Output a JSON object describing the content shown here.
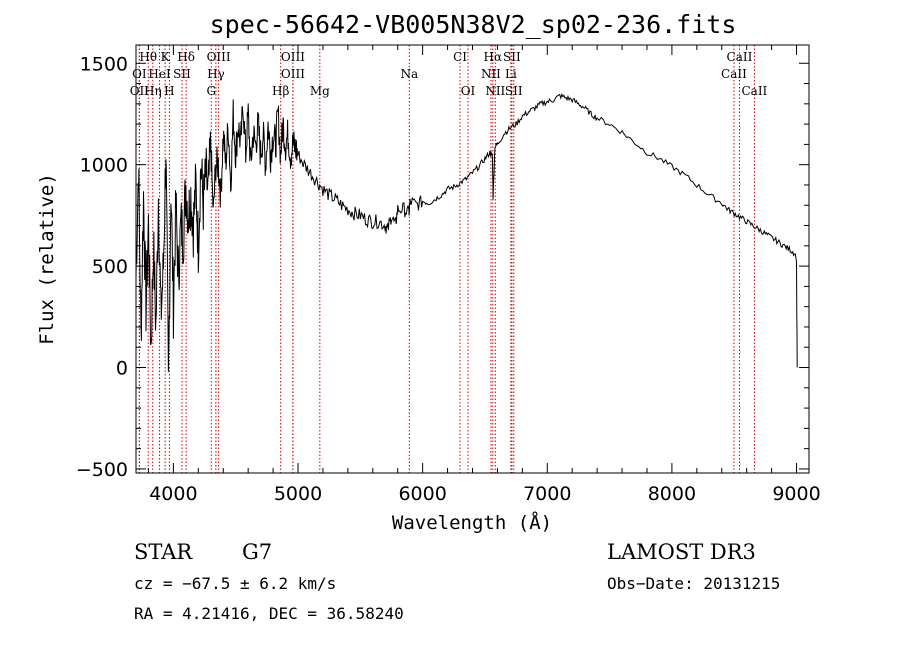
{
  "chart_data": {
    "type": "line",
    "title": "spec-56642-VB005N38V2_sp02-236.fits",
    "xlabel": "Wavelength (Å)",
    "ylabel": "Flux (relative)",
    "xlim": [
      3700,
      9100
    ],
    "ylim": [
      -520,
      1590
    ],
    "x_ticks": [
      4000,
      5000,
      6000,
      7000,
      8000,
      9000
    ],
    "x_tick_labels": [
      "4000",
      "5000",
      "6000",
      "7000",
      "8000",
      "9000"
    ],
    "y_ticks": [
      -500,
      0,
      500,
      1000,
      1500
    ],
    "y_tick_labels": [
      "−500",
      "0",
      "500",
      "1000",
      "1500"
    ],
    "series": [
      {
        "name": "spectrum",
        "color": "#000000",
        "x": [
          3700,
          3720,
          3740,
          3760,
          3780,
          3800,
          3820,
          3840,
          3860,
          3880,
          3900,
          3920,
          3940,
          3960,
          3980,
          4000,
          4020,
          4040,
          4060,
          4080,
          4100,
          4120,
          4140,
          4160,
          4180,
          4200,
          4220,
          4240,
          4260,
          4280,
          4300,
          4320,
          4340,
          4360,
          4380,
          4400,
          4420,
          4440,
          4460,
          4480,
          4500,
          4520,
          4540,
          4560,
          4580,
          4600,
          4620,
          4640,
          4660,
          4680,
          4700,
          4720,
          4740,
          4760,
          4780,
          4800,
          4820,
          4840,
          4860,
          4880,
          4900,
          4920,
          4940,
          4960,
          4980,
          5000,
          5050,
          5100,
          5150,
          5200,
          5250,
          5300,
          5350,
          5400,
          5450,
          5500,
          5550,
          5600,
          5650,
          5700,
          5720,
          5750,
          5780,
          5800,
          5850,
          5890,
          5900,
          5950,
          6000,
          6050,
          6100,
          6150,
          6200,
          6250,
          6300,
          6350,
          6400,
          6450,
          6500,
          6540,
          6560,
          6565,
          6580,
          6600,
          6650,
          6700,
          6750,
          6800,
          6850,
          6900,
          6950,
          7000,
          7050,
          7100,
          7150,
          7200,
          7250,
          7300,
          7350,
          7400,
          7500,
          7600,
          7700,
          7800,
          7900,
          8000,
          8100,
          8200,
          8300,
          8400,
          8450,
          8500,
          8550,
          8600,
          8650,
          8700,
          8750,
          8800,
          8850,
          8900,
          8950,
          8990,
          9000,
          9005
        ],
        "values": [
          450,
          1000,
          150,
          850,
          300,
          700,
          100,
          600,
          200,
          850,
          250,
          500,
          1100,
          -100,
          900,
          300,
          800,
          450,
          700,
          650,
          900,
          750,
          850,
          700,
          900,
          600,
          1000,
          800,
          950,
          850,
          1100,
          750,
          1000,
          1000,
          850,
          1150,
          1000,
          1200,
          900,
          1250,
          1050,
          1200,
          1100,
          1300,
          1050,
          1250,
          1000,
          1150,
          1100,
          1200,
          1050,
          1150,
          1000,
          1200,
          1050,
          1150,
          1100,
          1250,
          1050,
          1200,
          1100,
          1150,
          1050,
          1100,
          1080,
          1050,
          1000,
          960,
          920,
          880,
          850,
          830,
          800,
          780,
          760,
          750,
          730,
          720,
          720,
          700,
          680,
          750,
          700,
          780,
          780,
          760,
          820,
          800,
          820,
          810,
          830,
          850,
          880,
          890,
          910,
          930,
          960,
          990,
          1030,
          1060,
          1040,
          840,
          1090,
          1100,
          1150,
          1180,
          1200,
          1240,
          1260,
          1280,
          1300,
          1310,
          1320,
          1340,
          1330,
          1320,
          1300,
          1280,
          1250,
          1230,
          1200,
          1160,
          1110,
          1060,
          1030,
          990,
          950,
          900,
          850,
          810,
          780,
          760,
          740,
          720,
          700,
          680,
          660,
          640,
          620,
          600,
          580,
          560,
          520,
          0
        ]
      }
    ],
    "lines": [
      {
        "name": "Hθ",
        "x": 3798,
        "row": 1
      },
      {
        "name": "K",
        "x": 3934,
        "row": 1
      },
      {
        "name": "Hδ",
        "x": 4102,
        "row": 1
      },
      {
        "name": "OIII",
        "x": 4363,
        "row": 1
      },
      {
        "name": "OIII",
        "x": 4959,
        "row": 1
      },
      {
        "name": "CI",
        "x": 6300,
        "row": 1
      },
      {
        "name": "Hα",
        "x": 6563,
        "row": 1
      },
      {
        "name": "SII",
        "x": 6716,
        "row": 1
      },
      {
        "name": "CaII",
        "x": 8542,
        "row": 1
      },
      {
        "name": "OI",
        "x": 3727,
        "row": 2
      },
      {
        "name": "HeI",
        "x": 3889,
        "row": 2
      },
      {
        "name": "SII",
        "x": 4069,
        "row": 2
      },
      {
        "name": "Hγ",
        "x": 4341,
        "row": 2
      },
      {
        "name": "OIII",
        "x": 4959,
        "row": 2
      },
      {
        "name": "Na",
        "x": 5893,
        "row": 2
      },
      {
        "name": "NII",
        "x": 6548,
        "row": 2
      },
      {
        "name": "Li",
        "x": 6708,
        "row": 2
      },
      {
        "name": "CaII",
        "x": 8498,
        "row": 2
      },
      {
        "name": "OII",
        "x": 3727,
        "row": 3
      },
      {
        "name": "Hη",
        "x": 3835,
        "row": 3
      },
      {
        "name": "H",
        "x": 3968,
        "row": 3
      },
      {
        "name": "G",
        "x": 4304,
        "row": 3
      },
      {
        "name": "Hβ",
        "x": 4861,
        "row": 3
      },
      {
        "name": "Mg",
        "x": 5175,
        "row": 3
      },
      {
        "name": "OI",
        "x": 6364,
        "row": 3
      },
      {
        "name": "NII",
        "x": 6583,
        "row": 3
      },
      {
        "name": "SII",
        "x": 6731,
        "row": 3
      },
      {
        "name": "CaII",
        "x": 8662,
        "row": 3
      }
    ]
  },
  "info": {
    "class": "STAR",
    "subclass": "G7",
    "survey": "LAMOST DR3",
    "cz": "cz = −67.5 ± 6.2 km/s",
    "obs_date": "Obs−Date: 20131215",
    "coords": "RA =   4.21416, DEC =  36.58240"
  },
  "colors": {
    "line_marker": "#cc0000",
    "trace": "#000000"
  }
}
